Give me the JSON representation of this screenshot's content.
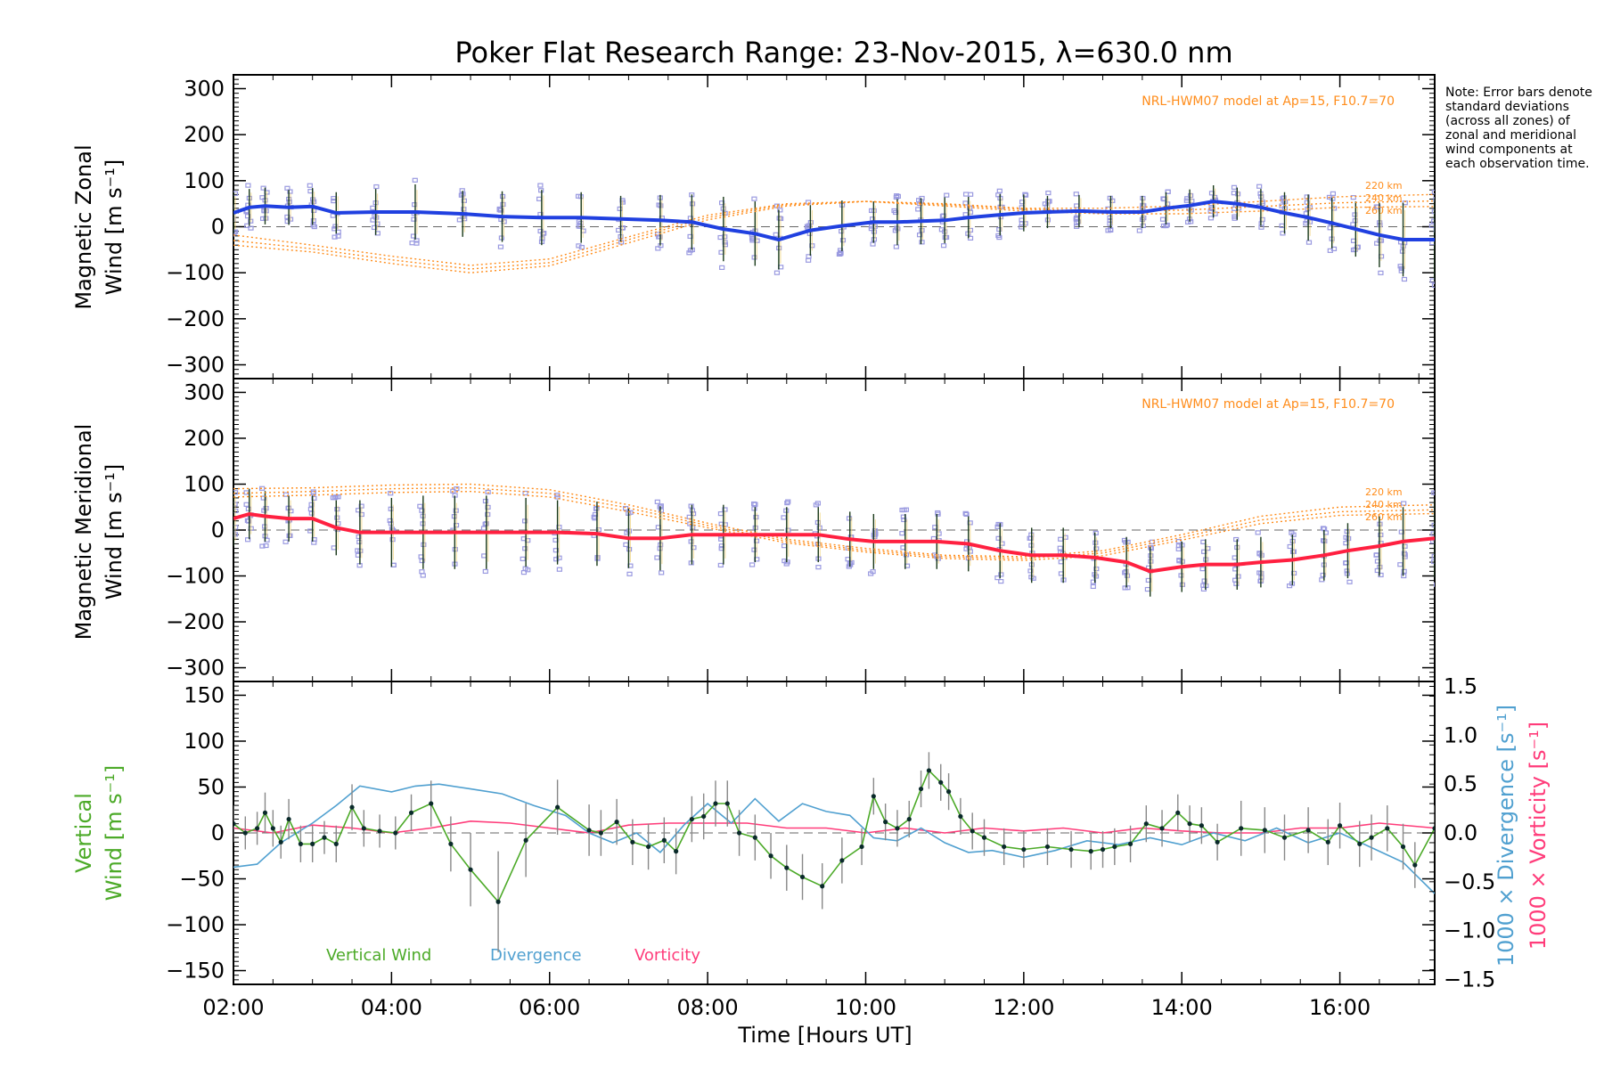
{
  "title": "Poker Flat Research Range: 23-Nov-2015, λ=630.0 nm",
  "note": "Note: Error bars denote standard deviations (across all zones) of zonal and meridional wind components at each observation time.",
  "model_label": "NRL-HWM07 model at Ap=15, F10.7=70",
  "altitude_labels": [
    "220 km",
    "240 km",
    "260 km"
  ],
  "colors": {
    "zonal": "#2040e0",
    "meridional": "#ff2040",
    "vertical": "#4caa28",
    "divergence": "#50a0d0",
    "vorticity": "#ff3c7a",
    "model": "#ff8c1a",
    "scatter": "#9a9ae0",
    "errorbar": "#1a3a1a"
  },
  "panels": {
    "zonal": {
      "ylabel_line1": "Magnetic Zonal",
      "ylabel_line2": "Wind [m s⁻¹]"
    },
    "meridional": {
      "ylabel_line1": "Magnetic Meridional",
      "ylabel_line2": "Wind [m s⁻¹]"
    },
    "vertical": {
      "ylabel_line1": "Vertical",
      "ylabel_line2": "Wind [m s⁻¹]",
      "ylabel_right1": "1000 × Divergence [s⁻¹]",
      "ylabel_right2": "1000 × Vorticity [s⁻¹]",
      "legend": [
        "Vertical Wind",
        "Divergence",
        "Vorticity"
      ]
    }
  },
  "xlabel": "Time [Hours UT]",
  "chart_data": [
    {
      "type": "line",
      "title": "Poker Flat Research Range: 23-Nov-2015, λ=630.0 nm",
      "ylabel": "Magnetic Zonal Wind [m s⁻¹]",
      "xlim": [
        2.0,
        17.2
      ],
      "ylim": [
        -330,
        330
      ],
      "xticks": [
        "02:00",
        "04:00",
        "06:00",
        "08:00",
        "10:00",
        "12:00",
        "14:00",
        "16:00"
      ],
      "yticks": [
        -300,
        -200,
        -100,
        0,
        100,
        200,
        300
      ],
      "series": [
        {
          "role": "observed",
          "x": [
            2.0,
            2.2,
            2.4,
            2.7,
            3.0,
            3.3,
            3.8,
            4.3,
            4.9,
            5.4,
            5.9,
            6.4,
            6.9,
            7.4,
            7.8,
            8.2,
            8.6,
            8.9,
            9.3,
            9.7,
            10.1,
            10.4,
            10.7,
            11.0,
            11.3,
            11.7,
            12.0,
            12.3,
            12.7,
            13.1,
            13.5,
            13.8,
            14.1,
            14.4,
            14.7,
            15.0,
            15.3,
            15.6,
            15.9,
            16.2,
            16.5,
            16.8,
            17.2
          ],
          "y": [
            30,
            42,
            45,
            42,
            44,
            30,
            32,
            32,
            28,
            22,
            20,
            20,
            17,
            14,
            10,
            -5,
            -15,
            -28,
            -8,
            2,
            10,
            10,
            12,
            14,
            20,
            26,
            30,
            32,
            34,
            32,
            32,
            40,
            46,
            55,
            50,
            42,
            30,
            20,
            8,
            -5,
            -18,
            -28,
            -28
          ],
          "error": [
            45,
            40,
            40,
            38,
            40,
            45,
            50,
            60,
            50,
            55,
            60,
            55,
            50,
            55,
            60,
            70,
            70,
            65,
            55,
            55,
            45,
            50,
            50,
            50,
            45,
            45,
            40,
            35,
            35,
            35,
            35,
            35,
            35,
            35,
            35,
            40,
            45,
            50,
            55,
            60,
            70,
            80,
            90
          ]
        },
        {
          "role": "model",
          "name": "220 km",
          "x": [
            2.0,
            3.0,
            4.0,
            5.0,
            6.0,
            7.0,
            8.0,
            9.0,
            10.0,
            11.0,
            12.0,
            13.0,
            14.0,
            15.0,
            16.0,
            17.2
          ],
          "y": [
            -40,
            -55,
            -80,
            -100,
            -85,
            -35,
            15,
            45,
            55,
            50,
            40,
            40,
            45,
            55,
            65,
            70
          ]
        },
        {
          "role": "model",
          "name": "240 km",
          "x": [
            2.0,
            3.0,
            4.0,
            5.0,
            6.0,
            7.0,
            8.0,
            9.0,
            10.0,
            11.0,
            12.0,
            13.0,
            14.0,
            15.0,
            16.0,
            17.2
          ],
          "y": [
            -30,
            -48,
            -72,
            -92,
            -78,
            -28,
            20,
            48,
            55,
            48,
            38,
            34,
            36,
            44,
            52,
            56
          ]
        },
        {
          "role": "model",
          "name": "260 km",
          "x": [
            2.0,
            3.0,
            4.0,
            5.0,
            6.0,
            7.0,
            8.0,
            9.0,
            10.0,
            11.0,
            12.0,
            13.0,
            14.0,
            15.0,
            16.0,
            17.2
          ],
          "y": [
            -18,
            -40,
            -64,
            -84,
            -70,
            -22,
            25,
            50,
            55,
            45,
            34,
            28,
            28,
            34,
            42,
            44
          ]
        }
      ]
    },
    {
      "type": "line",
      "ylabel": "Magnetic Meridional Wind [m s⁻¹]",
      "xlim": [
        2.0,
        17.2
      ],
      "ylim": [
        -330,
        330
      ],
      "yticks": [
        -300,
        -200,
        -100,
        0,
        100,
        200,
        300
      ],
      "series": [
        {
          "role": "observed",
          "x": [
            2.0,
            2.2,
            2.4,
            2.7,
            3.0,
            3.3,
            3.6,
            4.0,
            4.4,
            4.8,
            5.2,
            5.7,
            6.1,
            6.6,
            7.0,
            7.4,
            7.8,
            8.2,
            8.6,
            9.0,
            9.4,
            9.8,
            10.1,
            10.5,
            10.9,
            11.3,
            11.7,
            12.1,
            12.5,
            12.9,
            13.3,
            13.6,
            14.0,
            14.3,
            14.7,
            15.0,
            15.4,
            15.8,
            16.1,
            16.5,
            16.8,
            17.2
          ],
          "y": [
            25,
            35,
            30,
            25,
            25,
            5,
            -5,
            -5,
            -5,
            -5,
            -5,
            -5,
            -5,
            -8,
            -18,
            -18,
            -10,
            -10,
            -10,
            -10,
            -10,
            -20,
            -25,
            -25,
            -25,
            -30,
            -45,
            -55,
            -55,
            -60,
            -70,
            -90,
            -80,
            -75,
            -75,
            -70,
            -65,
            -55,
            -45,
            -35,
            -25,
            -18
          ],
          "error": [
            60,
            55,
            55,
            50,
            50,
            60,
            70,
            75,
            80,
            80,
            80,
            75,
            70,
            70,
            65,
            70,
            65,
            65,
            60,
            60,
            60,
            60,
            60,
            60,
            60,
            60,
            60,
            60,
            60,
            55,
            55,
            55,
            55,
            55,
            55,
            55,
            55,
            55,
            60,
            65,
            75,
            85
          ]
        },
        {
          "role": "model",
          "name": "220 km",
          "x": [
            2.0,
            3.0,
            4.0,
            5.0,
            6.0,
            7.0,
            8.0,
            9.0,
            10.0,
            11.0,
            12.0,
            13.0,
            14.0,
            15.0,
            16.0,
            17.2
          ],
          "y": [
            90,
            92,
            98,
            100,
            88,
            55,
            15,
            -20,
            -40,
            -55,
            -58,
            -45,
            -10,
            30,
            50,
            55
          ]
        },
        {
          "role": "model",
          "name": "240 km",
          "x": [
            2.0,
            3.0,
            4.0,
            5.0,
            6.0,
            7.0,
            8.0,
            9.0,
            10.0,
            11.0,
            12.0,
            13.0,
            14.0,
            15.0,
            16.0,
            17.2
          ],
          "y": [
            80,
            84,
            90,
            92,
            80,
            48,
            10,
            -24,
            -44,
            -58,
            -62,
            -50,
            -16,
            22,
            40,
            44
          ]
        },
        {
          "role": "model",
          "name": "260 km",
          "x": [
            2.0,
            3.0,
            4.0,
            5.0,
            6.0,
            7.0,
            8.0,
            9.0,
            10.0,
            11.0,
            12.0,
            13.0,
            14.0,
            15.0,
            16.0,
            17.2
          ],
          "y": [
            72,
            76,
            82,
            84,
            72,
            40,
            5,
            -28,
            -48,
            -62,
            -66,
            -56,
            -22,
            14,
            32,
            36
          ]
        }
      ]
    },
    {
      "type": "line",
      "xlabel": "Time [Hours UT]",
      "ylabel": "Vertical Wind [m s⁻¹]",
      "ylabel_right": "1000 × Divergence [s⁻¹] / 1000 × Vorticity [s⁻¹]",
      "xlim": [
        2.0,
        17.2
      ],
      "ylim": [
        -165,
        165
      ],
      "ylim_right": [
        -1.55,
        1.55
      ],
      "xticks": [
        "02:00",
        "04:00",
        "06:00",
        "08:00",
        "10:00",
        "12:00",
        "14:00",
        "16:00"
      ],
      "yticks": [
        -150,
        -100,
        -50,
        0,
        50,
        100,
        150
      ],
      "yticks_right": [
        -1.5,
        -1.0,
        -0.5,
        0.0,
        0.5,
        1.0,
        1.5
      ],
      "series": [
        {
          "name": "Vertical Wind",
          "axis": "left",
          "x": [
            2.0,
            2.15,
            2.3,
            2.4,
            2.5,
            2.6,
            2.7,
            2.85,
            3.0,
            3.15,
            3.3,
            3.5,
            3.65,
            3.85,
            4.05,
            4.25,
            4.5,
            4.75,
            5.0,
            5.35,
            5.7,
            6.1,
            6.5,
            6.65,
            6.85,
            7.05,
            7.25,
            7.45,
            7.6,
            7.8,
            7.95,
            8.1,
            8.25,
            8.4,
            8.6,
            8.8,
            9.0,
            9.2,
            9.45,
            9.7,
            9.95,
            10.1,
            10.25,
            10.4,
            10.55,
            10.7,
            10.8,
            10.95,
            11.05,
            11.2,
            11.35,
            11.5,
            11.75,
            12.0,
            12.3,
            12.6,
            12.85,
            13.0,
            13.15,
            13.35,
            13.55,
            13.75,
            13.95,
            14.1,
            14.25,
            14.45,
            14.75,
            15.05,
            15.3,
            15.6,
            15.85,
            16.0,
            16.25,
            16.4,
            16.6,
            16.8,
            16.95,
            17.2
          ],
          "y": [
            10,
            0,
            5,
            22,
            5,
            -10,
            15,
            -12,
            -12,
            -5,
            -12,
            28,
            5,
            2,
            0,
            22,
            32,
            -12,
            -40,
            -75,
            -8,
            28,
            3,
            0,
            12,
            -10,
            -15,
            -8,
            -20,
            15,
            18,
            32,
            32,
            0,
            -5,
            -25,
            -38,
            -48,
            -58,
            -30,
            -15,
            40,
            12,
            5,
            15,
            48,
            68,
            55,
            45,
            18,
            2,
            -5,
            -15,
            -18,
            -15,
            -18,
            -20,
            -18,
            -15,
            -12,
            10,
            5,
            22,
            10,
            8,
            -10,
            5,
            3,
            -5,
            3,
            -10,
            8,
            -12,
            -5,
            5,
            -15,
            -35,
            5
          ],
          "error": [
            20,
            18,
            18,
            22,
            20,
            18,
            22,
            20,
            20,
            18,
            20,
            25,
            20,
            18,
            18,
            20,
            25,
            30,
            40,
            55,
            40,
            30,
            28,
            25,
            25,
            25,
            25,
            25,
            25,
            25,
            25,
            25,
            25,
            25,
            25,
            25,
            25,
            25,
            25,
            25,
            20,
            20,
            20,
            20,
            20,
            20,
            20,
            20,
            20,
            20,
            20,
            20,
            20,
            20,
            20,
            20,
            20,
            20,
            20,
            20,
            20,
            20,
            20,
            20,
            20,
            20,
            30,
            25,
            25,
            25,
            25,
            25,
            25,
            25,
            25,
            25,
            25,
            25
          ]
        },
        {
          "name": "Divergence",
          "axis": "right",
          "x": [
            2.0,
            2.3,
            2.6,
            3.0,
            3.3,
            3.6,
            4.0,
            4.3,
            4.6,
            5.0,
            5.4,
            5.8,
            6.2,
            6.5,
            6.8,
            7.1,
            7.4,
            7.7,
            8.0,
            8.3,
            8.6,
            8.9,
            9.2,
            9.5,
            9.8,
            10.1,
            10.4,
            10.7,
            11.0,
            11.3,
            11.6,
            12.0,
            12.4,
            12.8,
            13.2,
            13.6,
            14.0,
            14.4,
            14.8,
            15.2,
            15.6,
            16.0,
            16.4,
            16.8,
            17.2
          ],
          "y": [
            -0.35,
            -0.32,
            -0.1,
            0.1,
            0.28,
            0.48,
            0.42,
            0.48,
            0.5,
            0.45,
            0.4,
            0.28,
            0.18,
            0.0,
            -0.1,
            0.0,
            -0.2,
            0.08,
            0.3,
            0.1,
            0.35,
            0.12,
            0.3,
            0.22,
            0.18,
            -0.05,
            -0.08,
            0.05,
            -0.1,
            -0.2,
            -0.18,
            -0.25,
            -0.18,
            -0.08,
            -0.12,
            -0.05,
            -0.12,
            0.0,
            -0.08,
            0.05,
            -0.1,
            0.0,
            -0.15,
            -0.3,
            -0.62
          ]
        },
        {
          "name": "Vorticity",
          "axis": "right",
          "x": [
            2.0,
            2.5,
            3.0,
            3.5,
            4.0,
            4.5,
            5.0,
            5.5,
            6.0,
            6.5,
            7.0,
            7.5,
            8.0,
            8.5,
            9.0,
            9.5,
            10.0,
            10.5,
            11.0,
            11.5,
            12.0,
            12.5,
            13.0,
            13.5,
            14.0,
            14.5,
            15.0,
            15.5,
            16.0,
            16.5,
            17.2
          ],
          "y": [
            0.05,
            0.0,
            0.08,
            0.05,
            0.0,
            0.05,
            0.12,
            0.1,
            0.05,
            0.0,
            0.08,
            0.1,
            0.1,
            0.1,
            0.05,
            0.05,
            0.0,
            0.05,
            0.0,
            0.05,
            0.02,
            0.05,
            0.0,
            0.05,
            0.02,
            0.0,
            0.0,
            0.05,
            0.05,
            0.1,
            0.05
          ]
        }
      ]
    }
  ]
}
